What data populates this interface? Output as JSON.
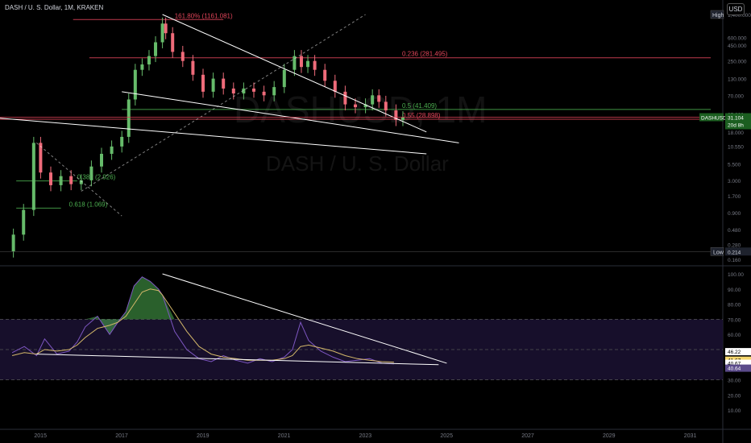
{
  "header": {
    "title": "DASH / U. S. Dollar, 1M, KRAKEN",
    "currency_button": "USD"
  },
  "watermark": {
    "symbol": "DASHUSD, 1M",
    "name": "DASH / U. S. Dollar"
  },
  "colors": {
    "background": "#000000",
    "up_candle": "#66bb6a",
    "down_candle": "#ef6b7a",
    "fib_red": "#e2455a",
    "fib_green": "#4caf50",
    "trendline": "#ffffff",
    "rsi_line": "#7e57c2",
    "rsi_ma": "#d4b86a",
    "rsi_band": "#1a1130"
  },
  "price_axis": {
    "ticks": [
      "1,400.000",
      "600.000",
      "450.000",
      "250.000",
      "130.000",
      "70.000",
      "35.000",
      "18.000",
      "10.550",
      "5.500",
      "3.000",
      "1.700",
      "0.900",
      "0.480",
      "0.280",
      "0.160"
    ],
    "high_label": "High",
    "low_label": "Low",
    "low_value": "0.214",
    "symbol_tag": "DASHUSD",
    "last_price": "31.104",
    "countdown": "20d 8h"
  },
  "rsi_axis": {
    "ticks": [
      "100.00",
      "90.00",
      "80.00",
      "70.00",
      "60.00",
      "50.00",
      "40.00",
      "30.00",
      "20.00",
      "10.00"
    ],
    "tag_1": "46.22",
    "tag_2": "41.67",
    "tag_3": "40.67",
    "tag_4": "40.64"
  },
  "time_axis": [
    "2015",
    "2017",
    "2019",
    "2021",
    "2023",
    "2025",
    "2027",
    "2029",
    "2031"
  ],
  "fib_labels": {
    "f1618": "161.80% (1161.081)",
    "f0236": "0.236 (281.495)",
    "f05": "0.5 (41.409)",
    "f055": "0.55 (28.898)",
    "f0382": "0.382 (2.926)",
    "f0618": "0.618 (1.069)"
  },
  "chart_data": [
    {
      "type": "candlestick",
      "title": "DASH / U. S. Dollar, 1M, KRAKEN",
      "y_scale": "log",
      "ylim": [
        0.16,
        1400
      ],
      "xlim": [
        2014.0,
        2031.5
      ],
      "x": [
        2014.33,
        2014.58,
        2014.83,
        2015.0,
        2015.25,
        2015.5,
        2015.75,
        2016.0,
        2016.25,
        2016.5,
        2016.75,
        2017.0,
        2017.17,
        2017.33,
        2017.5,
        2017.67,
        2017.83,
        2018.0,
        2018.08,
        2018.25,
        2018.5,
        2018.75,
        2019.0,
        2019.25,
        2019.5,
        2019.75,
        2020.0,
        2020.25,
        2020.5,
        2020.75,
        2021.0,
        2021.25,
        2021.42,
        2021.58,
        2021.75,
        2022.0,
        2022.25,
        2022.5,
        2022.75,
        2023.0,
        2023.17,
        2023.33,
        2023.5,
        2023.75,
        2023.92
      ],
      "close": [
        0.4,
        1.0,
        12.0,
        4.0,
        2.5,
        3.5,
        2.6,
        3.0,
        5.0,
        8.0,
        10.5,
        15.0,
        60.0,
        180.0,
        220.0,
        300.0,
        500.0,
        1000.0,
        700.0,
        350.0,
        250.0,
        150.0,
        80.0,
        130.0,
        90.0,
        75.0,
        90.0,
        80.0,
        70.0,
        95.0,
        180.0,
        300.0,
        200.0,
        250.0,
        180.0,
        120.0,
        80.0,
        50.0,
        45.0,
        50.0,
        70.0,
        55.0,
        40.0,
        28.0,
        31.1
      ],
      "low": 0.214,
      "high": 1400,
      "last": 31.104
    },
    {
      "type": "line",
      "title": "RSI",
      "ylim": [
        0,
        100
      ],
      "x": [
        2014.3,
        2014.6,
        2014.9,
        2015.1,
        2015.4,
        2015.7,
        2015.9,
        2016.1,
        2016.4,
        2016.7,
        2016.9,
        2017.1,
        2017.3,
        2017.5,
        2017.7,
        2017.9,
        2018.0,
        2018.3,
        2018.6,
        2018.9,
        2019.2,
        2019.5,
        2019.8,
        2020.1,
        2020.4,
        2020.7,
        2021.0,
        2021.2,
        2021.4,
        2021.6,
        2021.9,
        2022.2,
        2022.5,
        2022.8,
        2023.1,
        2023.4,
        2023.7
      ],
      "series": [
        {
          "values": [
            48,
            52,
            46,
            57,
            47,
            49,
            55,
            65,
            72,
            60,
            68,
            75,
            92,
            98,
            95,
            90,
            86,
            62,
            50,
            44,
            42,
            46,
            43,
            41,
            44,
            42,
            45,
            50,
            68,
            56,
            49,
            45,
            42,
            43,
            44,
            41,
            40.6
          ]
        },
        {
          "values": [
            46,
            48,
            47,
            50,
            49,
            50,
            53,
            58,
            64,
            66,
            68,
            72,
            80,
            88,
            90,
            89,
            86,
            74,
            62,
            52,
            47,
            45,
            44,
            43,
            43,
            43,
            44,
            46,
            52,
            53,
            51,
            49,
            46,
            44,
            43,
            42,
            41.7
          ]
        }
      ],
      "bands": [
        30,
        70
      ]
    }
  ]
}
